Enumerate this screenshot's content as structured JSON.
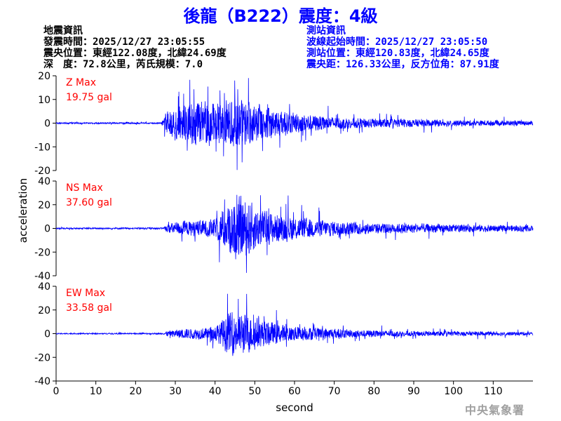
{
  "header": {
    "title": "後龍（B222）震度：4級"
  },
  "quake_info": {
    "heading": "地震資訊",
    "origin_time": "發震時間：2025/12/27 23:05:55",
    "epicenter": "震央位置：東經122.08度，北緯24.69度",
    "depth_magnitude": "深　度：72.8公里，芮氏規模：7.0"
  },
  "station_info": {
    "heading": "測站資訊",
    "wave_start": "波線起始時間：2025/12/27 23:05:50",
    "station_position": "測站位置：東經120.83度，北緯24.65度",
    "distance_azimuth": "震央距：126.33公里，反方位角：87.91度"
  },
  "footer": {
    "agency": "中央氣象署"
  },
  "colors": {
    "title": "#0000ff",
    "trace": "#0000ff",
    "max_label": "#ff0000",
    "station_info": "#0000ff",
    "watermark": "#a0a0a0"
  },
  "chart_data": {
    "type": "line",
    "xlabel": "second",
    "ylabel": "acceleration",
    "xlim": [
      0,
      120
    ],
    "x_ticks": [
      "0",
      "10",
      "20",
      "30",
      "40",
      "50",
      "60",
      "70",
      "80",
      "90",
      "100",
      "110"
    ],
    "grid": false,
    "panels": [
      {
        "component": "Z",
        "max_label": "Z Max",
        "max_value": "19.75 gal",
        "peak": 19.75,
        "ylim": [
          -20,
          20
        ],
        "y_ticks": [
          "20",
          "10",
          "0",
          "-10",
          "-20"
        ],
        "envelope": [
          [
            0,
            0.4
          ],
          [
            26.5,
            0.4
          ],
          [
            27,
            3
          ],
          [
            28,
            6
          ],
          [
            30,
            9
          ],
          [
            33,
            11
          ],
          [
            36,
            12
          ],
          [
            40,
            11
          ],
          [
            44,
            12
          ],
          [
            47,
            13
          ],
          [
            50,
            11
          ],
          [
            54,
            8
          ],
          [
            58,
            6
          ],
          [
            62,
            5
          ],
          [
            66,
            4
          ],
          [
            72,
            3
          ],
          [
            80,
            2.5
          ],
          [
            90,
            2
          ],
          [
            100,
            1.6
          ],
          [
            110,
            1.4
          ],
          [
            120,
            1.2
          ]
        ]
      },
      {
        "component": "NS",
        "max_label": "NS Max",
        "max_value": "37.60 gal",
        "peak": 37.6,
        "ylim": [
          -40,
          40
        ],
        "y_ticks": [
          "40",
          "20",
          "0",
          "-20",
          "-40"
        ],
        "envelope": [
          [
            0,
            0.5
          ],
          [
            27,
            0.6
          ],
          [
            28,
            3
          ],
          [
            30,
            5
          ],
          [
            36,
            6
          ],
          [
            40,
            7
          ],
          [
            42,
            14
          ],
          [
            44,
            20
          ],
          [
            46,
            24
          ],
          [
            48,
            22
          ],
          [
            50,
            17
          ],
          [
            52,
            14
          ],
          [
            55,
            11
          ],
          [
            60,
            9
          ],
          [
            65,
            7
          ],
          [
            72,
            5
          ],
          [
            80,
            4
          ],
          [
            90,
            3.5
          ],
          [
            100,
            3
          ],
          [
            110,
            2.5
          ],
          [
            120,
            2
          ]
        ]
      },
      {
        "component": "EW",
        "max_label": "EW Max",
        "max_value": "33.58 gal",
        "peak": 33.58,
        "ylim": [
          -40,
          40
        ],
        "y_ticks": [
          "40",
          "20",
          "0",
          "-20",
          "-40"
        ],
        "envelope": [
          [
            0,
            0.5
          ],
          [
            27,
            0.6
          ],
          [
            28,
            3
          ],
          [
            32,
            5
          ],
          [
            38,
            6
          ],
          [
            41,
            10
          ],
          [
            43,
            20
          ],
          [
            45,
            22
          ],
          [
            48,
            20
          ],
          [
            50,
            17
          ],
          [
            53,
            13
          ],
          [
            57,
            9
          ],
          [
            62,
            7
          ],
          [
            68,
            6
          ],
          [
            75,
            4
          ],
          [
            85,
            3
          ],
          [
            95,
            2.5
          ],
          [
            110,
            2
          ],
          [
            120,
            1.8
          ]
        ]
      }
    ]
  }
}
